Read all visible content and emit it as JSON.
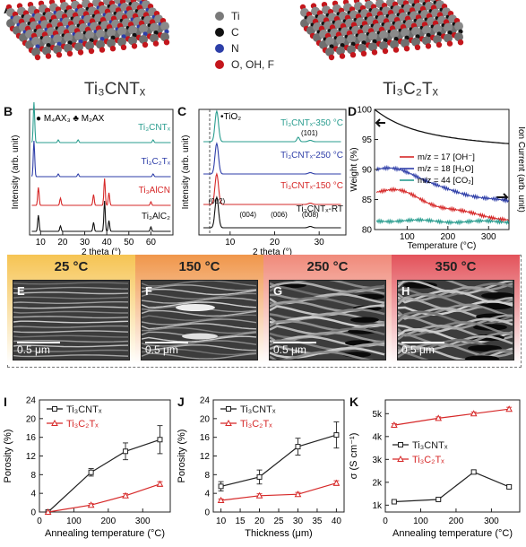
{
  "panel_labels": {
    "A": "A",
    "B": "B",
    "C": "C",
    "D": "D",
    "E": "E",
    "F": "F",
    "G": "G",
    "H": "H",
    "I": "I",
    "J": "J",
    "K": "K"
  },
  "panel_a": {
    "legend": [
      {
        "label": "Ti",
        "color": "#7a7a7a"
      },
      {
        "label": "C",
        "color": "#111111"
      },
      {
        "label": "N",
        "color": "#2d3fa8"
      },
      {
        "label": "O, OH, F",
        "color": "#c4161c"
      }
    ],
    "left_name": "Ti₃CNTₓ",
    "right_name": "Ti₃C₂Tₓ"
  },
  "panel_b": {
    "ylabel": "Intensity (arb. unit)",
    "xlabel": "2 theta (°)",
    "legend_text": "● M₄AX₃ ♣ M₂AX",
    "traces": [
      {
        "name": "Ti₃CNTₓ",
        "color": "#2a9d8f"
      },
      {
        "name": "Ti₃C₂Tₓ",
        "color": "#2e3ea8"
      },
      {
        "name": "Ti₃AlCN",
        "color": "#d62828"
      },
      {
        "name": "Ti₃AlC₂",
        "color": "#111111"
      }
    ],
    "xticks": [
      "10",
      "20",
      "30",
      "40",
      "50",
      "60"
    ]
  },
  "panel_c": {
    "ylabel": "Intensity (arb. unit)",
    "xlabel": "2 theta (°)",
    "tio2": "•TiO₂",
    "peak_101": "(101)",
    "traces": [
      {
        "name": "Ti₃CNTₓ-350 °C",
        "color": "#2a9d8f"
      },
      {
        "name": "Ti₃CNTₓ-250 °C",
        "color": "#2e3ea8"
      },
      {
        "name": "Ti₃CNTₓ-150 °C",
        "color": "#d62828"
      },
      {
        "name": "Ti₃CNTₓ-RT",
        "color": "#111111"
      }
    ],
    "peaks": [
      "(002)",
      "(004)",
      "(006)",
      "(008)"
    ],
    "xticks": [
      "10",
      "20",
      "30"
    ]
  },
  "panel_d": {
    "ylabel": "Weight (%)",
    "y2label": "Ion Current (arb. unit)",
    "xlabel": "Temperature (°C)",
    "yticks": [
      "80",
      "85",
      "90",
      "95",
      "100"
    ],
    "xticks": [
      "100",
      "200",
      "300"
    ],
    "legend": [
      {
        "label": "m/z = 17 [OH⁻]",
        "color": "#d62828"
      },
      {
        "label": "m/z = 18 [H₂O]",
        "color": "#2e3ea8"
      },
      {
        "label": "m/z = 44 [CO₂]",
        "color": "#2a9d8f"
      }
    ]
  },
  "sem_panels": [
    {
      "temp": "25 °C",
      "label": "E",
      "scale": "0.5 μm",
      "color": "#f6c453"
    },
    {
      "temp": "150 °C",
      "label": "F",
      "scale": "0.5 μm",
      "color": "#f0964a"
    },
    {
      "temp": "250 °C",
      "label": "G",
      "scale": "0.5 μm",
      "color": "#f08a7a"
    },
    {
      "temp": "350 °C",
      "label": "H",
      "scale": "0.5 μm",
      "color": "#e3525a"
    }
  ],
  "chart_data": [
    {
      "type": "line",
      "panel": "I",
      "xlabel": "Annealing temperature (°C)",
      "ylabel": "Porosity (%)",
      "xlim": [
        0,
        380
      ],
      "ylim": [
        0,
        24
      ],
      "xticks": [
        0,
        100,
        200,
        300
      ],
      "yticks": [
        0,
        4,
        8,
        12,
        16,
        20,
        24
      ],
      "series": [
        {
          "name": "Ti₃CNTₓ",
          "color": "#222222",
          "x": [
            25,
            150,
            250,
            350
          ],
          "y": [
            0,
            8.5,
            13,
            15.5
          ],
          "err": [
            0,
            0.8,
            1.8,
            3
          ]
        },
        {
          "name": "Ti₃C₂Tₓ",
          "color": "#d62828",
          "x": [
            25,
            150,
            250,
            350
          ],
          "y": [
            0,
            1.5,
            3.5,
            6
          ],
          "err": [
            0,
            0.3,
            0.4,
            0.5
          ]
        }
      ]
    },
    {
      "type": "line",
      "panel": "J",
      "xlabel": "Thickness (μm)",
      "ylabel": "Porosity (%)",
      "xlim": [
        8,
        42
      ],
      "ylim": [
        0,
        24
      ],
      "xticks": [
        10,
        15,
        20,
        25,
        30,
        35,
        40
      ],
      "yticks": [
        0,
        4,
        8,
        12,
        16,
        20,
        24
      ],
      "series": [
        {
          "name": "Ti₃CNTₓ",
          "color": "#222222",
          "x": [
            10,
            20,
            30,
            40
          ],
          "y": [
            5.5,
            7.5,
            14,
            16.5
          ],
          "err": [
            1,
            1.5,
            1.8,
            2.8
          ]
        },
        {
          "name": "Ti₃C₂Tₓ",
          "color": "#d62828",
          "x": [
            10,
            20,
            30,
            40
          ],
          "y": [
            2.5,
            3.5,
            3.8,
            6.2
          ],
          "err": [
            0.3,
            0.4,
            0.4,
            0.5
          ]
        }
      ]
    },
    {
      "type": "line",
      "panel": "K",
      "xlabel": "Annealing temperature (°C)",
      "ylabel": "σ (S cm⁻¹)",
      "xlim": [
        0,
        380
      ],
      "ylim": [
        700,
        5600
      ],
      "xticks": [
        0,
        100,
        200,
        300
      ],
      "yticks": [
        1000,
        2000,
        3000,
        4000,
        5000
      ],
      "ytick_labels": [
        "1k",
        "2k",
        "3k",
        "4k",
        "5k"
      ],
      "series": [
        {
          "name": "Ti₃CNTₓ",
          "color": "#222222",
          "x": [
            25,
            150,
            250,
            350
          ],
          "y": [
            1150,
            1250,
            2450,
            1800
          ],
          "err": [
            30,
            40,
            60,
            70
          ]
        },
        {
          "name": "Ti₃C₂Tₓ",
          "color": "#d62828",
          "x": [
            25,
            150,
            250,
            350
          ],
          "y": [
            4500,
            4800,
            5000,
            5200
          ],
          "err": [
            60,
            60,
            70,
            80
          ]
        }
      ]
    }
  ]
}
